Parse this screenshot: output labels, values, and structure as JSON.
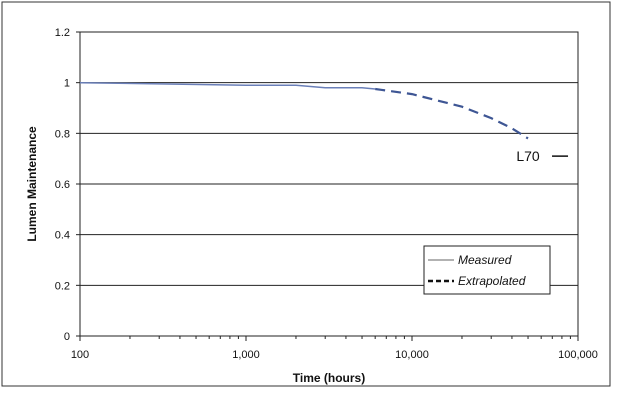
{
  "chart_data": {
    "type": "line",
    "title": "",
    "xlabel": "Time (hours)",
    "ylabel": "Lumen Maintenance",
    "x_scale": "log",
    "xlim": [
      100,
      100000
    ],
    "ylim": [
      0,
      1.2
    ],
    "x_ticks": [
      100,
      1000,
      10000,
      100000
    ],
    "x_tick_labels": [
      "100",
      "1,000",
      "10,000",
      "100,000"
    ],
    "y_ticks": [
      0,
      0.2,
      0.4,
      0.6,
      0.8,
      1,
      1.2
    ],
    "y_tick_labels": [
      "0",
      "0.2",
      "0.4",
      "0.6",
      "0.8",
      "1",
      "1.2"
    ],
    "grid": "horizontal",
    "legend": {
      "placement": "bottom-right"
    },
    "series": [
      {
        "name": "Measured",
        "style": "solid",
        "color": "#6a7fb8",
        "x": [
          100,
          300,
          1000,
          2000,
          3000,
          5000,
          6000
        ],
        "y": [
          1.0,
          0.995,
          0.99,
          0.99,
          0.98,
          0.98,
          0.975
        ]
      },
      {
        "name": "Extrapolated",
        "style": "dashed",
        "color": "#3e5694",
        "x": [
          6000,
          10000,
          20000,
          30000,
          40000,
          50000
        ],
        "y": [
          0.975,
          0.955,
          0.905,
          0.86,
          0.82,
          0.78
        ]
      }
    ],
    "annotations": [
      {
        "text": "L70",
        "x": 50000,
        "y": 0.71
      }
    ]
  }
}
